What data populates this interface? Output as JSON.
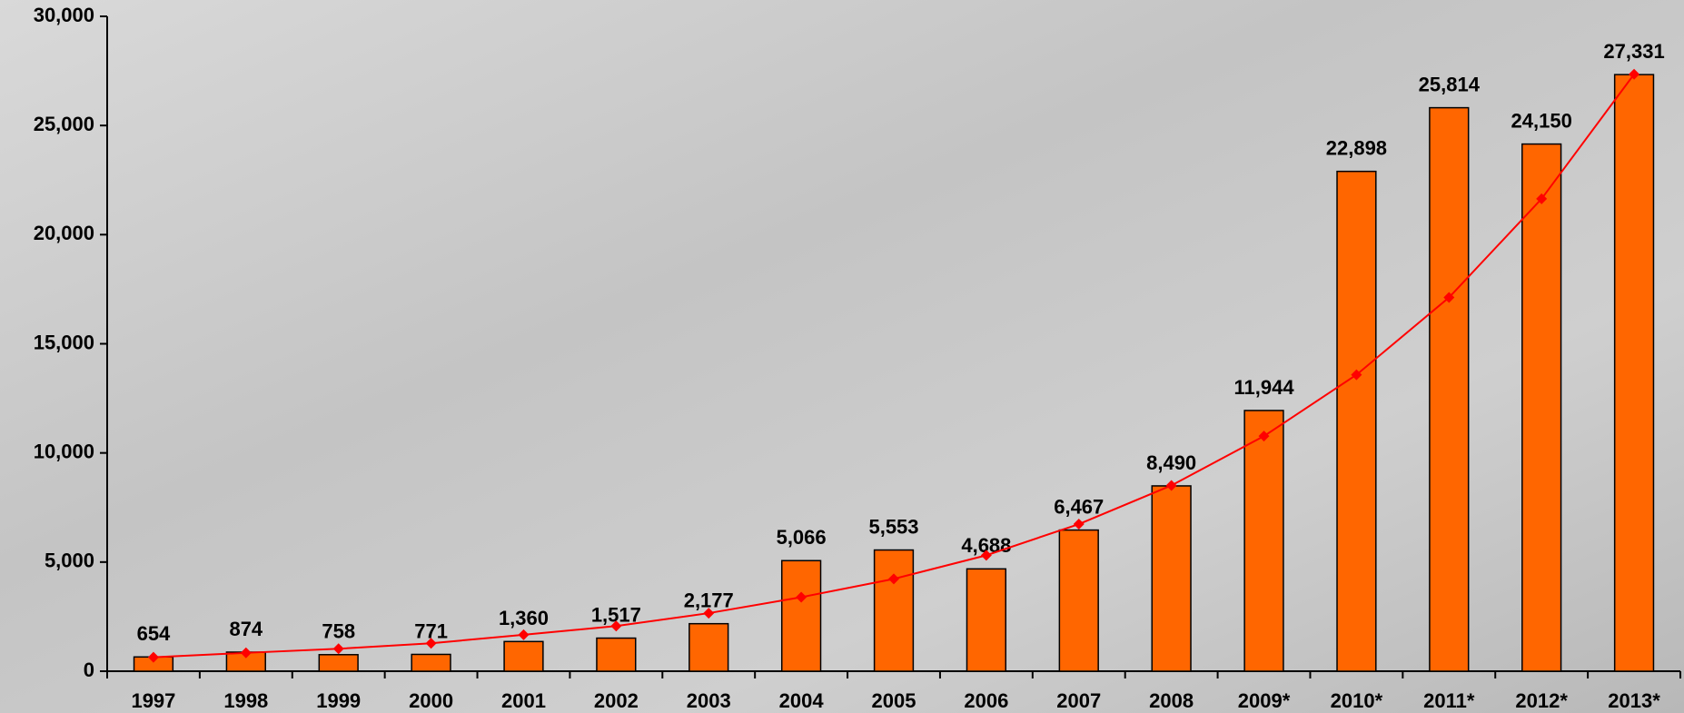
{
  "chart_data": {
    "type": "bar",
    "categories": [
      "1997",
      "1998",
      "1999",
      "2000",
      "2001",
      "2002",
      "2003",
      "2004",
      "2005",
      "2006",
      "2007",
      "2008",
      "2009*",
      "2010*",
      "2011*",
      "2012*",
      "2013*"
    ],
    "series": [
      {
        "type": "bar",
        "color": "#ff6600",
        "values": [
          654,
          874,
          758,
          771,
          1360,
          1517,
          2177,
          5066,
          5553,
          4688,
          6467,
          8490,
          11944,
          22898,
          25814,
          24150,
          27331
        ],
        "value_labels": [
          "654",
          "874",
          "758",
          "771",
          "1,360",
          "1,517",
          "2,177",
          "5,066",
          "5,553",
          "4,688",
          "6,467",
          "8,490",
          "11,944",
          "22,898",
          "25,814",
          "24,150",
          "27,331"
        ]
      },
      {
        "type": "line",
        "color": "#ff0000",
        "values": [
          640,
          840,
          1030,
          1280,
          1670,
          2070,
          2660,
          3390,
          4230,
          5310,
          6740,
          8510,
          10770,
          13580,
          17120,
          21640,
          27350
        ]
      }
    ],
    "ylim": [
      0,
      30000
    ],
    "yticks": [
      0,
      {
        "value": 5000,
        "label": "5,000"
      },
      {
        "value": 10000,
        "label": "10,000"
      },
      {
        "value": 15000,
        "label": "15,000"
      },
      {
        "value": 20000,
        "label": "20,000"
      },
      {
        "value": 25000,
        "label": "25,000"
      },
      {
        "value": 30000,
        "label": "30,000"
      }
    ]
  }
}
